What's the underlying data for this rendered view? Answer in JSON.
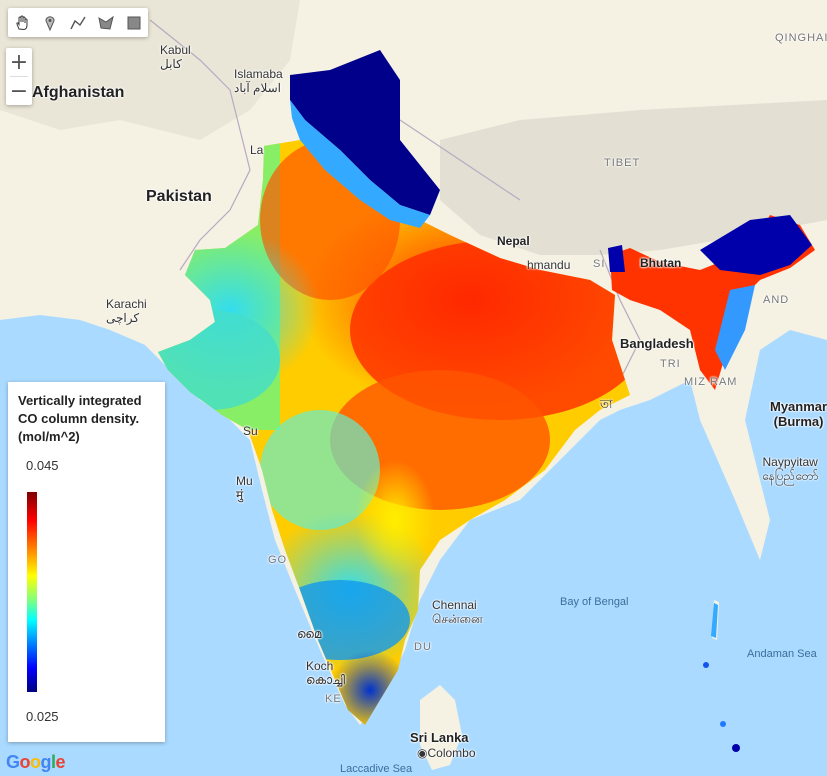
{
  "toolbar": {
    "tools": [
      {
        "name": "pan",
        "icon": "hand-icon"
      },
      {
        "name": "point",
        "icon": "map-pin-icon"
      },
      {
        "name": "line",
        "icon": "polyline-icon"
      },
      {
        "name": "polygon",
        "icon": "polygon-icon"
      },
      {
        "name": "rectangle",
        "icon": "rectangle-icon"
      }
    ]
  },
  "zoom": {
    "in_label": "+",
    "out_label": "−"
  },
  "map_labels": {
    "afghanistan": "Afghanistan",
    "pakistan": "Pakistan",
    "kabul": "Kabul",
    "kabul_native": "کابل",
    "islamabad": "Islamaba",
    "islamabad_native": "اسلام آباد",
    "lahore": "La",
    "karachi": "Karachi",
    "karachi_native": "کراچی",
    "tibet": "TIBET",
    "qinghai": "QINGHAI",
    "nepal": "Nepal",
    "kathmandu": "hmandu",
    "sikkim": "SI",
    "bhutan": "Bhutan",
    "bangladesh": "Bangladesh",
    "mizoram": "MIZ  RAM",
    "tripura": "TRI",
    "nagaland": "AND",
    "myanmar": "Myanmar",
    "myanmar_alt": "(Burma)",
    "naypyitaw": "Naypyitaw",
    "naypyitaw_native": "နေပြည်တော်",
    "surat": "Su",
    "mumbai": "Mu",
    "mumbai_native": "मुं",
    "goa": "GO",
    "chennai": "Chennai",
    "chennai_native": "சென்னை",
    "tamilnadu": "DU",
    "kochi": "Koch",
    "kochi_native": "കൊച്ചി",
    "kerala": "KE",
    "mysore": "മൈ",
    "sri_lanka": "Sri Lanka",
    "colombo": "Colombo",
    "bay_of_bengal": "Bay of Bengal",
    "andaman_sea": "Andaman Sea",
    "laccadive_sea": "Laccadive Sea",
    "kolkata_native": "তা"
  },
  "legend": {
    "title": "Vertically integrated CO column density. (mol/m^2)",
    "max": "0.045",
    "min": "0.025",
    "palette": [
      "#00007f",
      "#0000ff",
      "#007fff",
      "#00ffff",
      "#7fff7f",
      "#ffff00",
      "#ff7f00",
      "#ff0000",
      "#7f0000"
    ]
  },
  "attribution": {
    "logo": "Google"
  },
  "colors": {
    "water": "#aadaff",
    "land": "#f5f1e3",
    "highland": "#dcd8cc",
    "border": "#b0a8b8"
  }
}
